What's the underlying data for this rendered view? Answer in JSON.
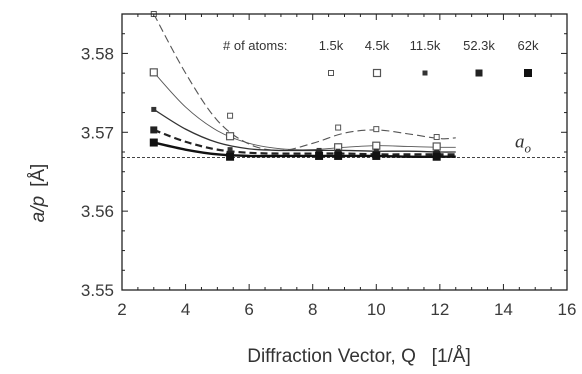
{
  "chart_data": {
    "type": "scatter",
    "title": "",
    "xlabel": "Diffraction Vector, Q   [1/Å]",
    "ylabel_main": "a/p",
    "ylabel_unit": "[Å]",
    "xlim": [
      2,
      16
    ],
    "ylim": [
      3.55,
      3.585
    ],
    "x_ticks": [
      2,
      4,
      6,
      8,
      10,
      12,
      14,
      16
    ],
    "x_tick_labels": [
      "2",
      "4",
      "6",
      "8",
      "10",
      "12",
      "14",
      "16"
    ],
    "y_ticks": [
      3.55,
      3.56,
      3.57,
      3.58
    ],
    "y_tick_labels": [
      "3.55",
      "3.56",
      "3.57",
      "3.58"
    ],
    "grid": false,
    "legend_title": "# of atoms:",
    "legend_placement": "top-right",
    "reference_line": {
      "y": 3.5668,
      "label_main": "a",
      "label_sub": "o",
      "style": "dashed"
    },
    "series": [
      {
        "name": "1.5k",
        "marker": "open-small",
        "line_style": "long-dash",
        "color": "#555555",
        "points": [
          [
            3.0,
            3.585
          ],
          [
            5.4,
            3.5721
          ],
          [
            8.8,
            3.5706
          ],
          [
            10.0,
            3.5704
          ],
          [
            11.9,
            3.5694
          ]
        ],
        "fit": [
          [
            3.0,
            3.585
          ],
          [
            4.0,
            3.5775
          ],
          [
            5.0,
            3.5715
          ],
          [
            6.0,
            3.5685
          ],
          [
            7.0,
            3.5677
          ],
          [
            8.0,
            3.5686
          ],
          [
            9.0,
            3.5699
          ],
          [
            10.0,
            3.5703
          ],
          [
            11.0,
            3.5698
          ],
          [
            12.0,
            3.5692
          ],
          [
            12.5,
            3.5693
          ]
        ]
      },
      {
        "name": "4.5k",
        "marker": "open-large",
        "line_style": "solid-thin",
        "color": "#555555",
        "points": [
          [
            3.0,
            3.5776
          ],
          [
            5.4,
            3.5695
          ],
          [
            8.8,
            3.5681
          ],
          [
            10.0,
            3.5683
          ],
          [
            11.9,
            3.5682
          ]
        ],
        "fit": [
          [
            3.0,
            3.5776
          ],
          [
            4.0,
            3.5732
          ],
          [
            5.0,
            3.5702
          ],
          [
            6.0,
            3.5686
          ],
          [
            7.0,
            3.5679
          ],
          [
            8.0,
            3.5678
          ],
          [
            9.0,
            3.5681
          ],
          [
            10.0,
            3.5683
          ],
          [
            11.0,
            3.5682
          ],
          [
            12.0,
            3.5681
          ],
          [
            12.5,
            3.5681
          ]
        ]
      },
      {
        "name": "11.5k",
        "marker": "filled-small",
        "line_style": "solid",
        "color": "#333333",
        "points": [
          [
            3.0,
            3.5729
          ],
          [
            5.4,
            3.5678
          ],
          [
            8.2,
            3.5677
          ],
          [
            8.8,
            3.5676
          ],
          [
            10.0,
            3.5676
          ],
          [
            11.9,
            3.5675
          ]
        ],
        "fit": [
          [
            3.0,
            3.5729
          ],
          [
            4.0,
            3.5704
          ],
          [
            5.0,
            3.5687
          ],
          [
            6.0,
            3.5679
          ],
          [
            7.0,
            3.5677
          ],
          [
            8.0,
            3.5677
          ],
          [
            9.0,
            3.5677
          ],
          [
            10.0,
            3.5676
          ],
          [
            11.0,
            3.5676
          ],
          [
            12.0,
            3.5675
          ],
          [
            12.5,
            3.5675
          ]
        ]
      },
      {
        "name": "52.3k",
        "marker": "filled-medium",
        "line_style": "dashed-thick",
        "color": "#222222",
        "points": [
          [
            3.0,
            3.5703
          ],
          [
            5.4,
            3.5672
          ],
          [
            8.2,
            3.5673
          ],
          [
            8.8,
            3.5673
          ],
          [
            10.0,
            3.5672
          ],
          [
            11.9,
            3.5672
          ]
        ],
        "fit": [
          [
            3.0,
            3.5703
          ],
          [
            4.0,
            3.5688
          ],
          [
            5.0,
            3.5678
          ],
          [
            6.0,
            3.5674
          ],
          [
            7.0,
            3.5673
          ],
          [
            8.0,
            3.5673
          ],
          [
            9.0,
            3.5673
          ],
          [
            10.0,
            3.5672
          ],
          [
            11.0,
            3.5672
          ],
          [
            12.0,
            3.5672
          ],
          [
            12.5,
            3.5672
          ]
        ]
      },
      {
        "name": "62k",
        "marker": "filled-large",
        "line_style": "solid-thick",
        "color": "#111111",
        "points": [
          [
            3.0,
            3.5687
          ],
          [
            5.4,
            3.5669
          ],
          [
            8.2,
            3.567
          ],
          [
            8.8,
            3.567
          ],
          [
            10.0,
            3.567
          ],
          [
            11.9,
            3.5669
          ]
        ],
        "fit": [
          [
            3.0,
            3.5687
          ],
          [
            4.0,
            3.5678
          ],
          [
            5.0,
            3.5672
          ],
          [
            6.0,
            3.567
          ],
          [
            7.0,
            3.567
          ],
          [
            8.0,
            3.567
          ],
          [
            9.0,
            3.567
          ],
          [
            10.0,
            3.567
          ],
          [
            11.0,
            3.5669
          ],
          [
            12.0,
            3.5669
          ],
          [
            12.5,
            3.5669
          ]
        ]
      }
    ]
  }
}
